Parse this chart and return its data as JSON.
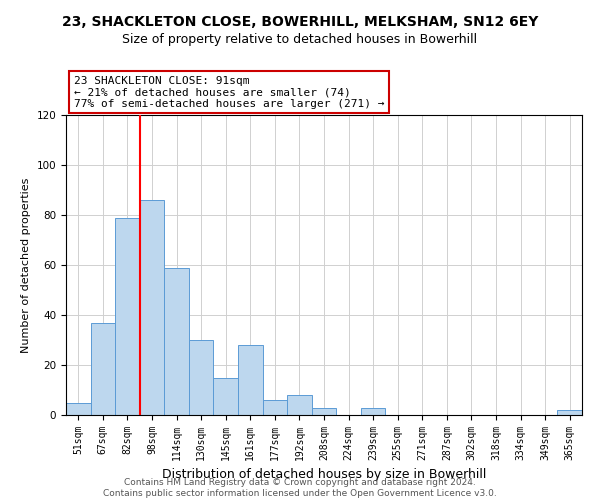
{
  "title": "23, SHACKLETON CLOSE, BOWERHILL, MELKSHAM, SN12 6EY",
  "subtitle": "Size of property relative to detached houses in Bowerhill",
  "xlabel": "Distribution of detached houses by size in Bowerhill",
  "ylabel": "Number of detached properties",
  "bar_labels": [
    "51sqm",
    "67sqm",
    "82sqm",
    "98sqm",
    "114sqm",
    "130sqm",
    "145sqm",
    "161sqm",
    "177sqm",
    "192sqm",
    "208sqm",
    "224sqm",
    "239sqm",
    "255sqm",
    "271sqm",
    "287sqm",
    "302sqm",
    "318sqm",
    "334sqm",
    "349sqm",
    "365sqm"
  ],
  "bar_values": [
    5,
    37,
    79,
    86,
    59,
    30,
    15,
    28,
    6,
    8,
    3,
    0,
    3,
    0,
    0,
    0,
    0,
    0,
    0,
    0,
    2
  ],
  "bar_color": "#bdd7ee",
  "bar_edge_color": "#5b9bd5",
  "vline_color": "#ff0000",
  "vline_position": 2.5,
  "annotation_text_line1": "23 SHACKLETON CLOSE: 91sqm",
  "annotation_text_line2": "← 21% of detached houses are smaller (74)",
  "annotation_text_line3": "77% of semi-detached houses are larger (271) →",
  "ylim": [
    0,
    120
  ],
  "yticks": [
    0,
    20,
    40,
    60,
    80,
    100,
    120
  ],
  "footer_text": "Contains HM Land Registry data © Crown copyright and database right 2024.\nContains public sector information licensed under the Open Government Licence v3.0.",
  "bg_color": "#ffffff",
  "grid_color": "#d0d0d0",
  "title_fontsize": 10,
  "subtitle_fontsize": 9,
  "xlabel_fontsize": 9,
  "ylabel_fontsize": 8,
  "annotation_fontsize": 8,
  "tick_fontsize": 7,
  "footer_fontsize": 6.5
}
